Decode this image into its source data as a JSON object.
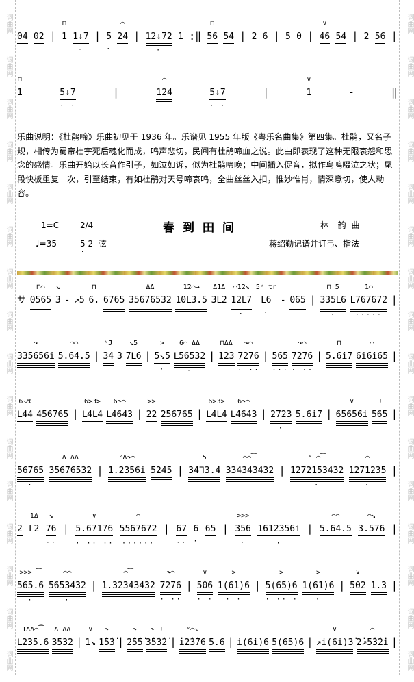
{
  "watermark": "词曲网",
  "prev_piece": {
    "rows": [
      [
        [
          "04",
          1,
          ""
        ],
        [
          "02",
          1,
          ""
        ],
        "|",
        [
          "1",
          0,
          "⊓"
        ],
        [
          "1↓7",
          1,
          "",
          "·"
        ],
        "|",
        [
          "5",
          0,
          "",
          "·"
        ],
        [
          "24",
          1,
          "⌒"
        ],
        "|",
        [
          "12↓72",
          2,
          "",
          "·"
        ],
        [
          "1",
          0,
          ""
        ],
        ":‖",
        [
          "56",
          1,
          "⊓"
        ],
        [
          "54",
          1,
          ""
        ],
        "|",
        [
          "2",
          0,
          ""
        ],
        [
          "6",
          0,
          ""
        ],
        "|",
        [
          "5",
          0,
          ""
        ],
        [
          "0",
          0,
          ""
        ],
        "|",
        [
          "46",
          1,
          "∨"
        ],
        [
          "54",
          1,
          ""
        ],
        "|",
        [
          "2",
          0,
          ""
        ],
        [
          "56",
          1,
          ""
        ],
        "|"
      ],
      [
        [
          "1",
          0,
          "⊓"
        ],
        [
          "5↓7",
          1,
          "",
          "· ·"
        ],
        "|",
        [
          "124",
          2,
          "⌒"
        ],
        [
          "5↓7",
          1,
          "",
          "· ·"
        ],
        "|",
        [
          "1",
          0,
          "∨"
        ],
        [
          "-",
          0,
          ""
        ],
        "‖"
      ]
    ],
    "description": "乐曲说明：《杜鹃啼》乐曲初见于 1936 年。乐谱见 1955 年版《粤乐名曲集》第四集。杜鹃，又名子规，相传为蜀帝杜宇死后魂化而成，鸣声悲切，民间有杜鹃啼血之说。此曲即表现了这种无限哀怨和思念的感情。乐曲开始以长音作引子，如泣如诉，似为杜鹃啼唤；中间插入促音，拟作鸟鸣啜泣之状；尾段快板重复一次，引至结束，有如杜鹃对天号啼哀鸣，全曲丝丝入扣，惟妙惟肖，情深意切，使人动容。"
  },
  "piece": {
    "key": "1=C",
    "meter": "2/4",
    "title": "春到田间",
    "composer": "林  韵 曲",
    "tempo": "♩=35",
    "tuning": "5 2  弦",
    "arranger": "蒋绍勤记谱并订弓、指法",
    "rows": [
      [
        [
          "サ",
          0,
          ""
        ],
        [
          "0565",
          2,
          "⊓⌒"
        ],
        [
          "3",
          0,
          "↘"
        ],
        [
          "-",
          0,
          ""
        ],
        [
          "↗5",
          0,
          ""
        ],
        [
          "6.",
          0,
          "⊓"
        ],
        [
          "6765",
          3,
          ""
        ],
        [
          "35676532",
          3,
          "  ΔΔ"
        ],
        [
          "10ᒪ3.5",
          3,
          "12⌒→"
        ],
        [
          "3ᒪ2",
          1,
          "Δ1Δ"
        ],
        [
          "12ᒪ7",
          2,
          "⌒12↘",
          "  ·"
        ],
        [
          "ᒪ6",
          0,
          "5ᵛ tr",
          "·"
        ],
        [
          "-",
          0,
          ""
        ],
        [
          "065",
          2,
          ""
        ],
        "|",
        [
          "335ᒪ6",
          3,
          "⊓ 5",
          "  ·"
        ],
        [
          "ᒪ767672",
          3,
          "1⌒",
          "·····"
        ],
        "|"
      ],
      [
        [
          "335656i",
          3,
          "↷"
        ],
        [
          "5.64.5",
          3,
          "⌒⌒"
        ],
        "|",
        [
          "34",
          2,
          "ᵛJ"
        ],
        [
          "3",
          0,
          ""
        ],
        [
          "7ᒪ6",
          2,
          "↘5"
        ],
        "|",
        [
          "5↘5",
          1,
          ">",
          "  ·"
        ],
        [
          "ᒪ56532",
          3,
          "6⌒ ΔΔ",
          "  ·"
        ],
        "|",
        [
          "123",
          2,
          "⊓ΔΔ"
        ],
        [
          "7276",
          2,
          "↷⌒",
          "· ··"
        ],
        "|",
        [
          "565",
          2,
          "",
          "···"
        ],
        [
          "7276",
          2,
          "↷⌒",
          "· ··"
        ],
        "|",
        [
          "5.6i7",
          3,
          "⊓"
        ],
        [
          "6i6i65",
          3,
          "⌒"
        ],
        "|"
      ],
      [
        [
          "ᒪ44",
          1,
          "6↘↯"
        ],
        [
          "456765",
          3,
          ""
        ],
        "|",
        [
          "ᒪ4ᒪ4",
          1,
          "6>3>"
        ],
        [
          "ᒪ4643",
          2,
          "6↷⌒"
        ],
        "|",
        [
          "22",
          1,
          ">>"
        ],
        [
          "256765",
          3,
          ""
        ],
        "|",
        [
          "ᒪ4ᒪ4",
          1,
          "6>3>"
        ],
        [
          "ᒪ4643",
          2,
          "6↷⌒"
        ],
        "|",
        [
          "2723",
          2,
          "",
          "·"
        ],
        [
          "5.6i7",
          2,
          ""
        ],
        "|",
        [
          "65656i",
          3,
          "∨"
        ],
        [
          "565",
          2,
          "J"
        ],
        "|"
      ],
      [
        [
          "56765",
          3,
          "",
          "·"
        ],
        [
          "35676532",
          3,
          "Δ    ΔΔ"
        ],
        "|",
        [
          "1.2356i",
          3,
          "ᵛΔ↷⌒"
        ],
        [
          "5245",
          2,
          ""
        ],
        "|",
        [
          "34ᒣ3.4",
          3,
          "5"
        ],
        [
          "334343432",
          3,
          "⌒⌒⁀"
        ],
        "|",
        [
          "1272153432",
          3,
          "ᵛ  ⌒⁀",
          "·"
        ],
        [
          "1271235",
          3,
          "⌒",
          "·"
        ],
        "|"
      ],
      [
        [
          "2",
          1,
          ""
        ],
        [
          "ᒪ2",
          0,
          "1Δ"
        ],
        [
          "76",
          2,
          "↘",
          "··"
        ],
        "|",
        [
          "5.67176",
          3,
          "∨",
          "· ·· ··"
        ],
        [
          "5567672",
          3,
          "⌒",
          "······"
        ],
        "|",
        [
          "67",
          2,
          "",
          "··"
        ],
        [
          "6",
          0,
          "",
          "·"
        ],
        [
          "65",
          2,
          ""
        ],
        "|",
        [
          "356",
          2,
          ">>>",
          "·"
        ],
        [
          "1612356i",
          3,
          "",
          "·"
        ],
        "|",
        [
          "5.64.5",
          3,
          "⌒⌒"
        ],
        [
          "3.576",
          3,
          "⌒↘"
        ],
        "|"
      ],
      [
        [
          "565.6",
          3,
          ">>> ⁀",
          "·"
        ],
        [
          "5653432",
          3,
          "⌒⌒",
          "·"
        ],
        "|",
        [
          "1.32343432",
          3,
          "⌒⁀"
        ],
        [
          "7276",
          2,
          "↷⌒",
          "· ··"
        ],
        "|",
        [
          "506",
          2,
          "∨",
          "· ·"
        ],
        [
          "1(61)6",
          2,
          ">",
          "· ·"
        ],
        "|",
        [
          "5(65)6",
          2,
          ">",
          "· ·· ·"
        ],
        [
          "1(61)6",
          2,
          ">",
          "·"
        ],
        "|",
        [
          "502",
          2,
          "∨"
        ],
        [
          "1.3",
          2,
          ""
        ],
        "|"
      ],
      [
        [
          "ᒪ235.6",
          3,
          "1ΔΔ⌒⁀"
        ],
        [
          "3532",
          3,
          "Δ ΔΔ"
        ],
        "|",
        [
          "1↘",
          0,
          "∨"
        ],
        [
          "1̇5̇3̇",
          2,
          "↷"
        ],
        "|",
        [
          "2̇5̇5̇",
          2,
          "↷"
        ],
        [
          "3̇5̇3̇2̇",
          2,
          "↷ J"
        ],
        "|",
        [
          "i̇2̇3̇76",
          3,
          "ᵛ⌒↘"
        ],
        [
          "5.6",
          2,
          ""
        ],
        "|",
        [
          "i(6i)6",
          3,
          ""
        ],
        [
          "5(65)6",
          3,
          ""
        ],
        "|",
        [
          "↗i(6i)3̇",
          3,
          "∨"
        ],
        [
          "2̇↗5̇3̇2̇i",
          3,
          "⌒"
        ],
        "|"
      ]
    ]
  }
}
